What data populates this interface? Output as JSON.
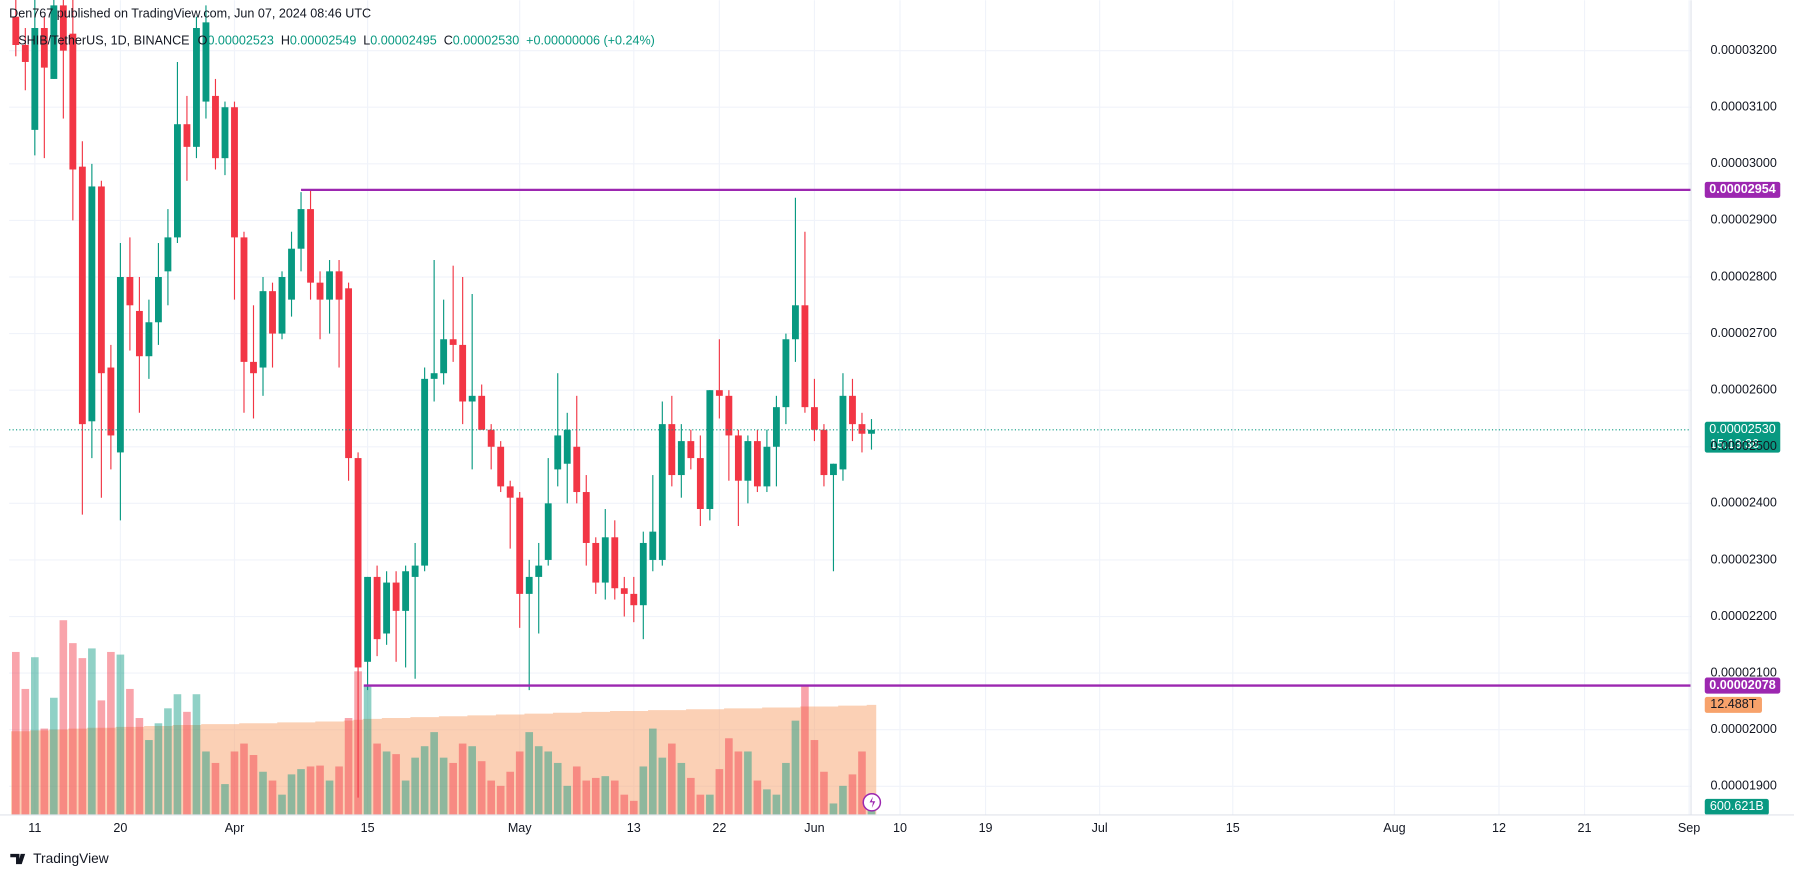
{
  "header": {
    "publisher": "Den767 published on TradingView.com, Jun 07, 2024 08:46 UTC",
    "symbol": "SHIB/TetherUS, 1D, BINANCE",
    "ohlc": [
      {
        "label": "O",
        "value": "0.00002523"
      },
      {
        "label": "H",
        "value": "0.00002549"
      },
      {
        "label": "L",
        "value": "0.00002495"
      },
      {
        "label": "C",
        "value": "0.00002530"
      }
    ],
    "change": "+0.00000006 (+0.24%)"
  },
  "chart_data": {
    "type": "candlestick",
    "open": [
      3.26e-05,
      3.21e-05,
      3.06e-05,
      3.24e-05,
      3.15e-05,
      3.28e-05,
      3.23e-05,
      2.995e-05,
      2.545e-05,
      2.96e-05,
      2.64e-05,
      2.49e-05,
      2.8e-05,
      2.74e-05,
      2.66e-05,
      2.72e-05,
      2.81e-05,
      2.87e-05,
      3.07e-05,
      3.03e-05,
      3.11e-05,
      3.12e-05,
      3.01e-05,
      3.1e-05,
      2.87e-05,
      2.65e-05,
      2.64e-05,
      2.775e-05,
      2.7e-05,
      2.76e-05,
      2.85e-05,
      2.92e-05,
      2.79e-05,
      2.76e-05,
      2.81e-05,
      2.78e-05,
      2.48e-05,
      2.12e-05,
      2.27e-05,
      2.17e-05,
      2.26e-05,
      2.21e-05,
      2.27e-05,
      2.29e-05,
      2.62e-05,
      2.63e-05,
      2.69e-05,
      2.68e-05,
      2.58e-05,
      2.59e-05,
      2.53e-05,
      2.5e-05,
      2.43e-05,
      2.41e-05,
      2.24e-05,
      2.27e-05,
      2.3e-05,
      2.46e-05,
      2.47e-05,
      2.5e-05,
      2.42e-05,
      2.33e-05,
      2.26e-05,
      2.34e-05,
      2.25e-05,
      2.24e-05,
      2.22e-05,
      2.3e-05,
      2.3e-05,
      2.54e-05,
      2.45e-05,
      2.51e-05,
      2.48e-05,
      2.39e-05,
      2.6e-05,
      2.59e-05,
      2.52e-05,
      2.44e-05,
      2.51e-05,
      2.43e-05,
      2.5e-05,
      2.57e-05,
      2.69e-05,
      2.75e-05,
      2.57e-05,
      2.53e-05,
      2.45e-05,
      2.46e-05,
      2.59e-05,
      2.54e-05,
      2.523e-05
    ],
    "high": [
      3.3e-05,
      3.24e-05,
      3.29e-05,
      3.26e-05,
      3.3e-05,
      3.3e-05,
      3.3e-05,
      3.04e-05,
      3e-05,
      2.97e-05,
      2.68e-05,
      2.86e-05,
      2.87e-05,
      2.8e-05,
      2.76e-05,
      2.86e-05,
      2.92e-05,
      3.18e-05,
      3.12e-05,
      3.26e-05,
      3.28e-05,
      3.15e-05,
      3.11e-05,
      3.11e-05,
      2.88e-05,
      2.75e-05,
      2.8e-05,
      2.79e-05,
      2.81e-05,
      2.88e-05,
      2.95e-05,
      2.954e-05,
      2.81e-05,
      2.83e-05,
      2.83e-05,
      2.79e-05,
      2.49e-05,
      2.27e-05,
      2.29e-05,
      2.28e-05,
      2.28e-05,
      2.29e-05,
      2.33e-05,
      2.64e-05,
      2.83e-05,
      2.76e-05,
      2.82e-05,
      2.8e-05,
      2.77e-05,
      2.61e-05,
      2.54e-05,
      2.51e-05,
      2.44e-05,
      2.42e-05,
      2.3e-05,
      2.33e-05,
      2.48e-05,
      2.63e-05,
      2.56e-05,
      2.59e-05,
      2.45e-05,
      2.34e-05,
      2.39e-05,
      2.37e-05,
      2.27e-05,
      2.27e-05,
      2.35e-05,
      2.45e-05,
      2.58e-05,
      2.59e-05,
      2.54e-05,
      2.53e-05,
      2.52e-05,
      2.6e-05,
      2.69e-05,
      2.6e-05,
      2.53e-05,
      2.52e-05,
      2.53e-05,
      2.53e-05,
      2.59e-05,
      2.7e-05,
      2.94e-05,
      2.88e-05,
      2.62e-05,
      2.54e-05,
      2.47e-05,
      2.63e-05,
      2.62e-05,
      2.56e-05,
      2.549e-05
    ],
    "low": [
      3.19e-05,
      3.13e-05,
      3.015e-05,
      3.01e-05,
      3.15e-05,
      3.08e-05,
      2.9e-05,
      2.38e-05,
      2.48e-05,
      2.41e-05,
      2.46e-05,
      2.37e-05,
      2.67e-05,
      2.56e-05,
      2.62e-05,
      2.68e-05,
      2.75e-05,
      2.86e-05,
      2.97e-05,
      3.01e-05,
      3.08e-05,
      2.99e-05,
      2.98e-05,
      2.76e-05,
      2.56e-05,
      2.55e-05,
      2.59e-05,
      2.64e-05,
      2.69e-05,
      2.73e-05,
      2.81e-05,
      2.76e-05,
      2.69e-05,
      2.7e-05,
      2.64e-05,
      2.44e-05,
      1.88e-05,
      2.07e-05,
      2.13e-05,
      2.15e-05,
      2.12e-05,
      2.11e-05,
      2.09e-05,
      2.28e-05,
      2.58e-05,
      2.61e-05,
      2.65e-05,
      2.54e-05,
      2.46e-05,
      2.53e-05,
      2.46e-05,
      2.42e-05,
      2.32e-05,
      2.18e-05,
      2.07e-05,
      2.17e-05,
      2.29e-05,
      2.43e-05,
      2.4e-05,
      2.4e-05,
      2.29e-05,
      2.24e-05,
      2.23e-05,
      2.23e-05,
      2.2e-05,
      2.19e-05,
      2.16e-05,
      2.28e-05,
      2.29e-05,
      2.43e-05,
      2.41e-05,
      2.46e-05,
      2.36e-05,
      2.37e-05,
      2.55e-05,
      2.44e-05,
      2.36e-05,
      2.4e-05,
      2.42e-05,
      2.42e-05,
      2.43e-05,
      2.54e-05,
      2.65e-05,
      2.56e-05,
      2.51e-05,
      2.43e-05,
      2.28e-05,
      2.44e-05,
      2.51e-05,
      2.49e-05,
      2.495e-05
    ],
    "close": [
      3.21e-05,
      3.18e-05,
      3.24e-05,
      3.17e-05,
      3.28e-05,
      3.2e-05,
      2.99e-05,
      2.54e-05,
      2.96e-05,
      2.63e-05,
      2.52e-05,
      2.8e-05,
      2.75e-05,
      2.66e-05,
      2.72e-05,
      2.8e-05,
      2.87e-05,
      3.07e-05,
      3.03e-05,
      3.24e-05,
      3.25e-05,
      3.01e-05,
      3.1e-05,
      2.87e-05,
      2.65e-05,
      2.63e-05,
      2.775e-05,
      2.7e-05,
      2.8e-05,
      2.85e-05,
      2.92e-05,
      2.79e-05,
      2.76e-05,
      2.81e-05,
      2.76e-05,
      2.48e-05,
      2.11e-05,
      2.27e-05,
      2.16e-05,
      2.26e-05,
      2.21e-05,
      2.28e-05,
      2.29e-05,
      2.62e-05,
      2.63e-05,
      2.69e-05,
      2.68e-05,
      2.58e-05,
      2.59e-05,
      2.53e-05,
      2.5e-05,
      2.43e-05,
      2.41e-05,
      2.24e-05,
      2.27e-05,
      2.29e-05,
      2.4e-05,
      2.52e-05,
      2.53e-05,
      2.42e-05,
      2.33e-05,
      2.26e-05,
      2.34e-05,
      2.25e-05,
      2.24e-05,
      2.22e-05,
      2.33e-05,
      2.35e-05,
      2.54e-05,
      2.45e-05,
      2.51e-05,
      2.48e-05,
      2.39e-05,
      2.6e-05,
      2.59e-05,
      2.52e-05,
      2.44e-05,
      2.51e-05,
      2.43e-05,
      2.5e-05,
      2.57e-05,
      2.69e-05,
      2.75e-05,
      2.57e-05,
      2.53e-05,
      2.45e-05,
      2.47e-05,
      2.59e-05,
      2.54e-05,
      2.523e-05,
      2.53e-05
    ],
    "up_color": "#089981",
    "down_color": "#f23645",
    "xlim": [
      -0.7,
      176.2
    ],
    "xticks": [
      {
        "value": 2,
        "label": "11"
      },
      {
        "value": 11,
        "label": "20"
      },
      {
        "value": 23,
        "label": "Apr"
      },
      {
        "value": 37,
        "label": "15"
      },
      {
        "value": 53,
        "label": "May"
      },
      {
        "value": 65,
        "label": "13"
      },
      {
        "value": 74,
        "label": "22"
      },
      {
        "value": 84,
        "label": "Jun"
      },
      {
        "value": 93,
        "label": "10"
      },
      {
        "value": 102,
        "label": "19"
      },
      {
        "value": 114,
        "label": "Jul"
      },
      {
        "value": 128,
        "label": "15"
      },
      {
        "value": 145,
        "label": "Aug"
      },
      {
        "value": 156,
        "label": "12"
      },
      {
        "value": 165,
        "label": "21"
      },
      {
        "value": 176,
        "label": "Sep"
      }
    ],
    "ylim": [
      1.8494e-05,
      3.2445e-05
    ],
    "yticks": [
      {
        "value": 1.9e-05,
        "label": "0.00001900"
      },
      {
        "value": 2e-05,
        "label": "0.00002000"
      },
      {
        "value": 2.1e-05,
        "label": "0.00002100"
      },
      {
        "value": 2.2e-05,
        "label": "0.00002200"
      },
      {
        "value": 2.3e-05,
        "label": "0.00002300"
      },
      {
        "value": 2.4e-05,
        "label": "0.00002400"
      },
      {
        "value": 2.5e-05,
        "label": "0.00002500"
      },
      {
        "value": 2.6e-05,
        "label": "0.00002600"
      },
      {
        "value": 2.7e-05,
        "label": "0.00002700"
      },
      {
        "value": 2.8e-05,
        "label": "0.00002800"
      },
      {
        "value": 2.9e-05,
        "label": "0.00002900"
      },
      {
        "value": 3e-05,
        "label": "0.00003000"
      },
      {
        "value": 3.1e-05,
        "label": "0.00003100"
      },
      {
        "value": 3.2e-05,
        "label": "0.00003200"
      }
    ],
    "grid": true,
    "volume": {
      "values": [
        18500000000000.0,
        14300000000000.0,
        17900000000000.0,
        9800000000000.0,
        13300000000000.0,
        22100000000000.0,
        19500000000000.0,
        17800000000000.0,
        18900000000000.0,
        13000000000000.0,
        18500000000000.0,
        18200000000000.0,
        14300000000000.0,
        11000000000000.0,
        8500000000000.0,
        10400000000000.0,
        12100000000000.0,
        13700000000000.0,
        11700000000000.0,
        13700000000000.0,
        7200000000000.0,
        5900000000000.0,
        3500000000000.0,
        7200000000000.0,
        8100000000000.0,
        6800000000000.0,
        4900000000000.0,
        3900000000000.0,
        2300000000000.0,
        4600000000000.0,
        5200000000000.0,
        5500000000000.0,
        5600000000000.0,
        3900000000000.0,
        5500000000000.0,
        11000000000000.0,
        16300000000000.0,
        14700000000000.0,
        8100000000000.0,
        7200000000000.0,
        6900000000000.0,
        3900000000000.0,
        6500000000000.0,
        7800000000000.0,
        9400000000000.0,
        6500000000000.0,
        5900000000000.0,
        8100000000000.0,
        7800000000000.0,
        6100000000000.0,
        3900000000000.0,
        3300000000000.0,
        4900000000000.0,
        7200000000000.0,
        9400000000000.0,
        7800000000000.0,
        7200000000000.0,
        5900000000000.0,
        3300000000000.0,
        5500000000000.0,
        3900000000000.0,
        4200000000000.0,
        4400000000000.0,
        3900000000000.0,
        2300000000000.0,
        1600000000000.0,
        5500000000000.0,
        9800000000000.0,
        6500000000000.0,
        8100000000000.0,
        5900000000000.0,
        4200000000000.0,
        2300000000000.0,
        2300000000000.0,
        5200000000000.0,
        8700000000000.0,
        7200000000000.0,
        7200000000000.0,
        3900000000000.0,
        2900000000000.0,
        2300000000000.0,
        5900000000000.0,
        10700000000000.0,
        14600000000000.0,
        8500000000000.0,
        4900000000000.0,
        1300000000000.0,
        3300000000000.0,
        4600000000000.0,
        7200000000000.0,
        600621000000
      ],
      "last_label": "600.621B",
      "color": "#089981"
    },
    "volume_ma": {
      "values": [
        9500000000000.0,
        9500000000000.0,
        9600000000000.0,
        9600000000000.0,
        9700000000000.0,
        9700000000000.0,
        9800000000000.0,
        9800000000000.0,
        9900000000000.0,
        9900000000000.0,
        9900000000000.0,
        10000000000000.0,
        10000000000000.0,
        10000000000000.0,
        10100000000000.0,
        10100000000000.0,
        10100000000000.0,
        10200000000000.0,
        10200000000000.0,
        10200000000000.0,
        10300000000000.0,
        10300000000000.0,
        10300000000000.0,
        10300000000000.0,
        10400000000000.0,
        10400000000000.0,
        10400000000000.0,
        10400000000000.0,
        10500000000000.0,
        10500000000000.0,
        10500000000000.0,
        10500000000000.0,
        10600000000000.0,
        10600000000000.0,
        10600000000000.0,
        10700000000000.0,
        10800000000000.0,
        10900000000000.0,
        10900000000000.0,
        11000000000000.0,
        11000000000000.0,
        11000000000000.0,
        11100000000000.0,
        11100000000000.0,
        11100000000000.0,
        11200000000000.0,
        11200000000000.0,
        11200000000000.0,
        11300000000000.0,
        11300000000000.0,
        11300000000000.0,
        11400000000000.0,
        11400000000000.0,
        11400000000000.0,
        11500000000000.0,
        11500000000000.0,
        11500000000000.0,
        11600000000000.0,
        11600000000000.0,
        11600000000000.0,
        11700000000000.0,
        11700000000000.0,
        11700000000000.0,
        11800000000000.0,
        11800000000000.0,
        11800000000000.0,
        11800000000000.0,
        11900000000000.0,
        11900000000000.0,
        11900000000000.0,
        11900000000000.0,
        12000000000000.0,
        12000000000000.0,
        12000000000000.0,
        12000000000000.0,
        12100000000000.0,
        12100000000000.0,
        12100000000000.0,
        12100000000000.0,
        12200000000000.0,
        12200000000000.0,
        12200000000000.0,
        12200000000000.0,
        12300000000000.0,
        12300000000000.0,
        12300000000000.0,
        12300000000000.0,
        12400000000000.0,
        12400000000000.0,
        12400000000000.0,
        12488000000000.0
      ],
      "last_label": "12.488T",
      "color": "#f7a26b"
    },
    "hlines": [
      {
        "value": 2.954e-05,
        "label": "0.00002954",
        "start": 30,
        "color": "#9c27b0"
      },
      {
        "value": 2.078e-05,
        "label": "0.00002078",
        "start": 36.6,
        "color": "#9c27b0"
      }
    ],
    "last_price": {
      "label": "0.00002530",
      "countdown": "15:13:36"
    }
  },
  "footer": {
    "brand": "TradingView"
  }
}
